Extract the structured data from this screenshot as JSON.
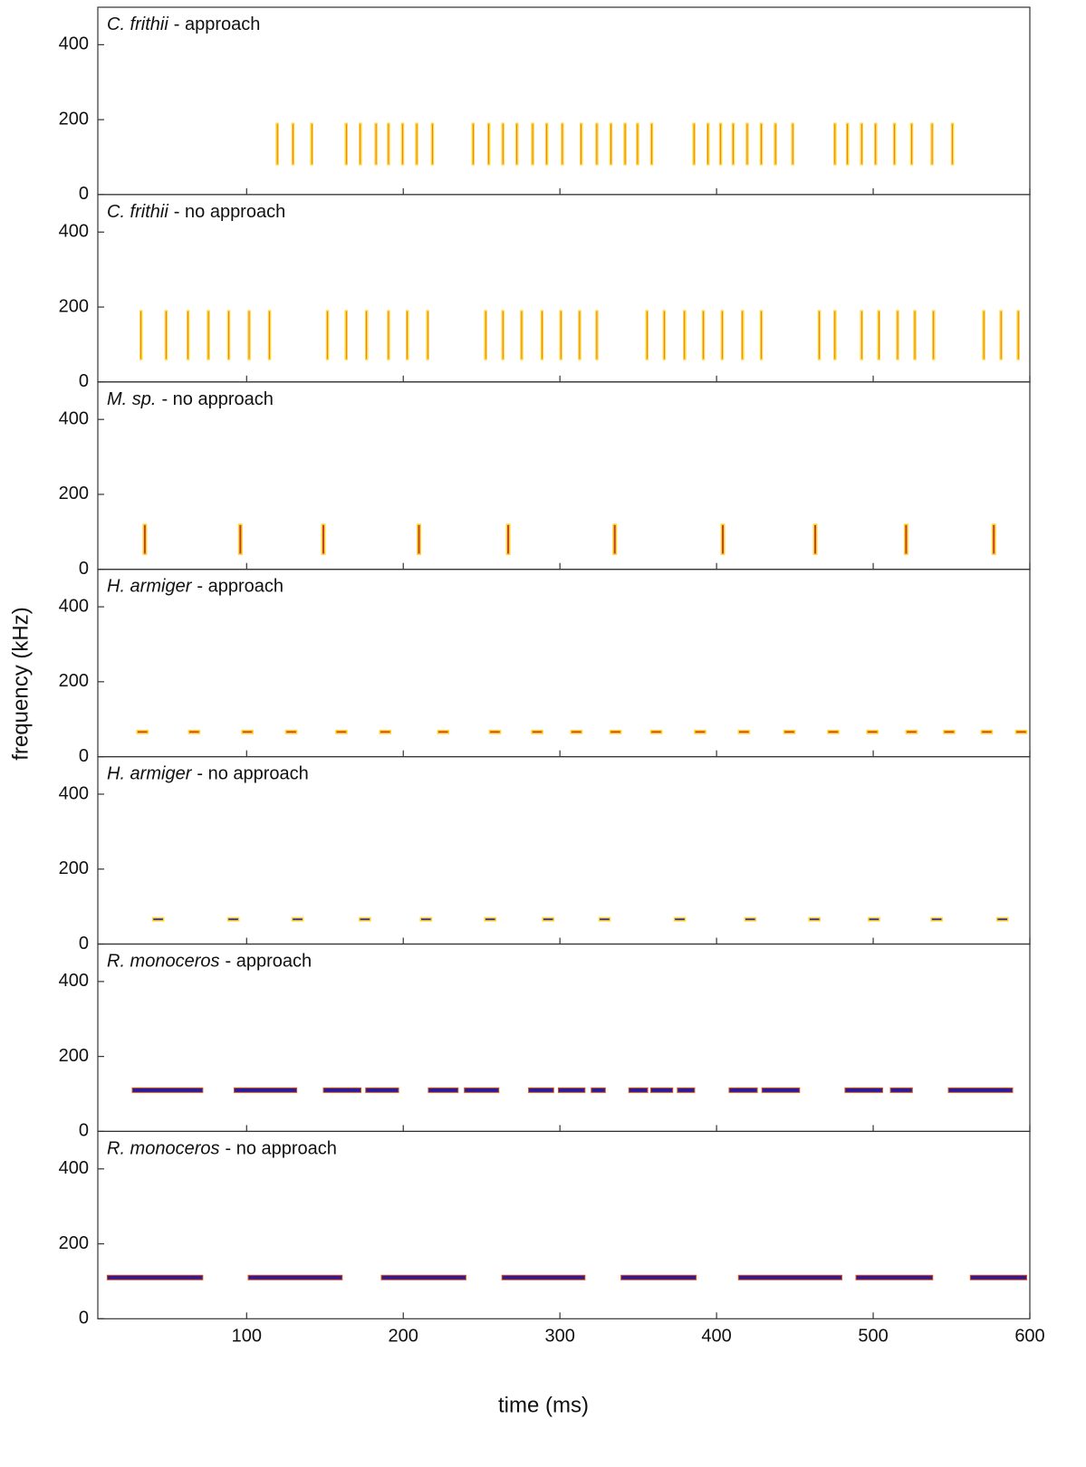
{
  "xlabel": "time (ms)",
  "ylabel": "frequency (kHz)",
  "chart_data": [
    {
      "type": "spectrogram",
      "species": "C. frithii",
      "title": "- approach",
      "color": "#d02020",
      "xlim": [
        5,
        600
      ],
      "xticks": [
        100,
        200,
        300,
        400,
        500,
        600
      ],
      "ylim": [
        0,
        500
      ],
      "yticks": [
        0,
        200,
        400
      ],
      "pulses": [
        119,
        129,
        141,
        163,
        172,
        182,
        190,
        199,
        208,
        218,
        244,
        254,
        263,
        272,
        282,
        291,
        301,
        313,
        323,
        332,
        341,
        349,
        358,
        385,
        394,
        402,
        410,
        419,
        428,
        437,
        448,
        475,
        483,
        492,
        501,
        513,
        524,
        537,
        550
      ],
      "pulse_ms": 1,
      "pulse_freq": [
        80,
        190
      ]
    },
    {
      "type": "spectrogram",
      "species": "C. frithii",
      "title": "- no approach",
      "color": "#d02020",
      "xlim": [
        5,
        600
      ],
      "xticks": [
        100,
        200,
        300,
        400,
        500,
        600
      ],
      "ylim": [
        0,
        500
      ],
      "yticks": [
        0,
        200,
        400
      ],
      "pulses": [
        32,
        48,
        62,
        75,
        88,
        101,
        114,
        151,
        163,
        176,
        190,
        202,
        215,
        252,
        263,
        275,
        288,
        300,
        312,
        323,
        355,
        366,
        379,
        391,
        403,
        416,
        428,
        465,
        475,
        492,
        503,
        515,
        526,
        538,
        570,
        581,
        592
      ],
      "pulse_ms": 1,
      "pulse_freq": [
        60,
        190
      ]
    },
    {
      "type": "spectrogram",
      "species": "M. sp.",
      "title": "- no approach",
      "color": "#c02a10",
      "xlim": [
        5,
        600
      ],
      "xticks": [
        100,
        200,
        300,
        400,
        500,
        600
      ],
      "ylim": [
        0,
        500
      ],
      "yticks": [
        0,
        200,
        400
      ],
      "pulses": [
        34,
        95,
        148,
        209,
        266,
        334,
        403,
        462,
        520,
        576
      ],
      "pulse_ms": 2,
      "pulse_freq": [
        40,
        120
      ]
    },
    {
      "type": "spectrogram",
      "species": "H. armiger",
      "title": "- approach",
      "color": "#c83010",
      "xlim": [
        5,
        600
      ],
      "xticks": [
        100,
        200,
        300,
        400,
        500,
        600
      ],
      "ylim": [
        0,
        500
      ],
      "yticks": [
        0,
        200,
        400
      ],
      "pulses": [
        30,
        63,
        97,
        125,
        157,
        185,
        222,
        255,
        282,
        307,
        332,
        358,
        386,
        414,
        443,
        471,
        496,
        521,
        545,
        569,
        591
      ],
      "pulse_ms": 7,
      "pulse_freq": [
        62,
        70
      ]
    },
    {
      "type": "spectrogram",
      "species": "H. armiger",
      "title": "- no approach",
      "color": "#2a1a8a",
      "xlim": [
        5,
        600
      ],
      "xticks": [
        100,
        200,
        300,
        400,
        500,
        600
      ],
      "ylim": [
        0,
        500
      ],
      "yticks": [
        0,
        200,
        400
      ],
      "pulses": [
        40,
        88,
        129,
        172,
        211,
        252,
        289,
        325,
        373,
        418,
        459,
        497,
        537,
        579
      ],
      "pulse_ms": 7,
      "pulse_freq": [
        62,
        70
      ]
    },
    {
      "type": "spectrogram",
      "species": "R. monoceros",
      "title": "- approach",
      "color": "#2b1a9a",
      "xlim": [
        5,
        600
      ],
      "xticks": [
        100,
        200,
        300,
        400,
        500,
        600
      ],
      "ylim": [
        0,
        500
      ],
      "yticks": [
        0,
        200,
        400
      ],
      "calls": [
        [
          27,
          72
        ],
        [
          92,
          132
        ],
        [
          149,
          173
        ],
        [
          176,
          197
        ],
        [
          216,
          235
        ],
        [
          239,
          261
        ],
        [
          280,
          296
        ],
        [
          299,
          316
        ],
        [
          320,
          329
        ],
        [
          344,
          356
        ],
        [
          358,
          372
        ],
        [
          375,
          386
        ],
        [
          408,
          426
        ],
        [
          429,
          453
        ],
        [
          482,
          506
        ],
        [
          511,
          525
        ],
        [
          548,
          589
        ]
      ],
      "call_freq": 110
    },
    {
      "type": "spectrogram",
      "species": "R. monoceros",
      "title": "- no approach",
      "color": "#2b1a9a",
      "xlim": [
        5,
        600
      ],
      "xticks": [
        100,
        200,
        300,
        400,
        500,
        600
      ],
      "ylim": [
        0,
        500
      ],
      "yticks": [
        0,
        200,
        400
      ],
      "calls": [
        [
          11,
          72
        ],
        [
          101,
          161
        ],
        [
          186,
          240
        ],
        [
          263,
          316
        ],
        [
          339,
          387
        ],
        [
          414,
          480
        ],
        [
          489,
          538
        ],
        [
          562,
          598
        ]
      ],
      "call_freq": 110
    }
  ]
}
